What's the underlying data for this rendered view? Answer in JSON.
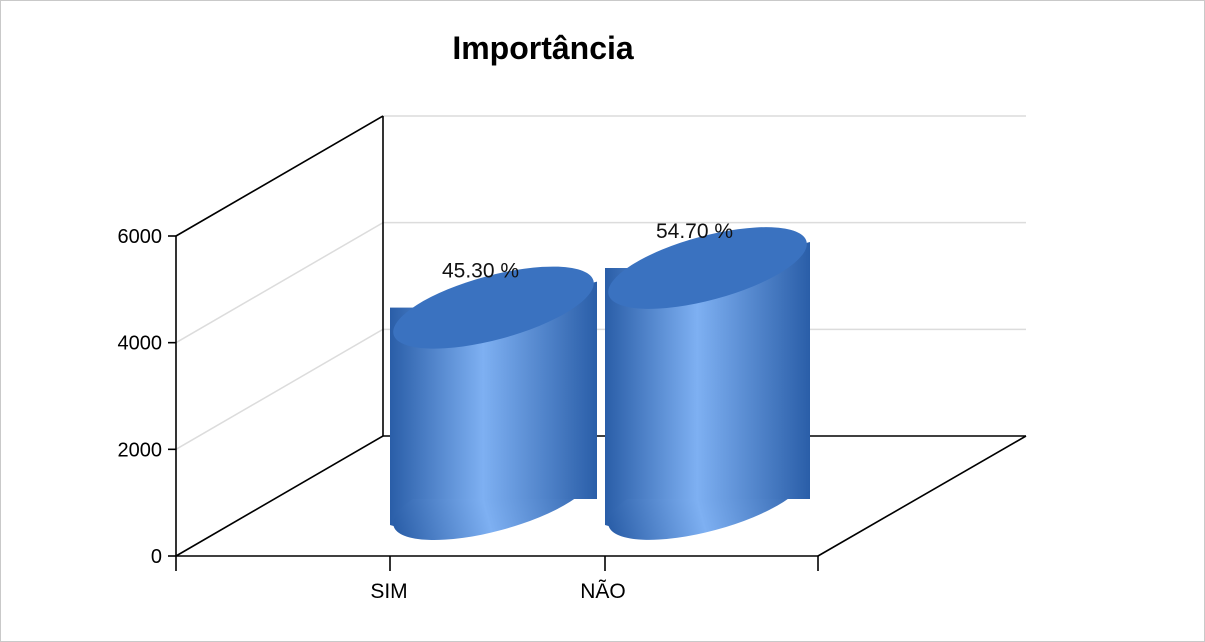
{
  "chart_data": {
    "type": "bar",
    "style": "3d-cylinder",
    "title": "Importância",
    "xlabel": "",
    "ylabel": "",
    "categories": [
      "SIM",
      "NÃO"
    ],
    "values": [
      4350,
      5250
    ],
    "data_labels": [
      "45.30 %",
      "54.70 %"
    ],
    "ylim": [
      0,
      6000
    ],
    "yticks": [
      "0",
      "2000",
      "4000",
      "6000"
    ],
    "grid": true,
    "legend": "none",
    "colors": {
      "bar_dark": "#2a5ea8",
      "bar_light": "#7eb0f2",
      "bar_top": "#3a72c0",
      "grid": "#dcdcdc",
      "axis": "#000000"
    }
  }
}
